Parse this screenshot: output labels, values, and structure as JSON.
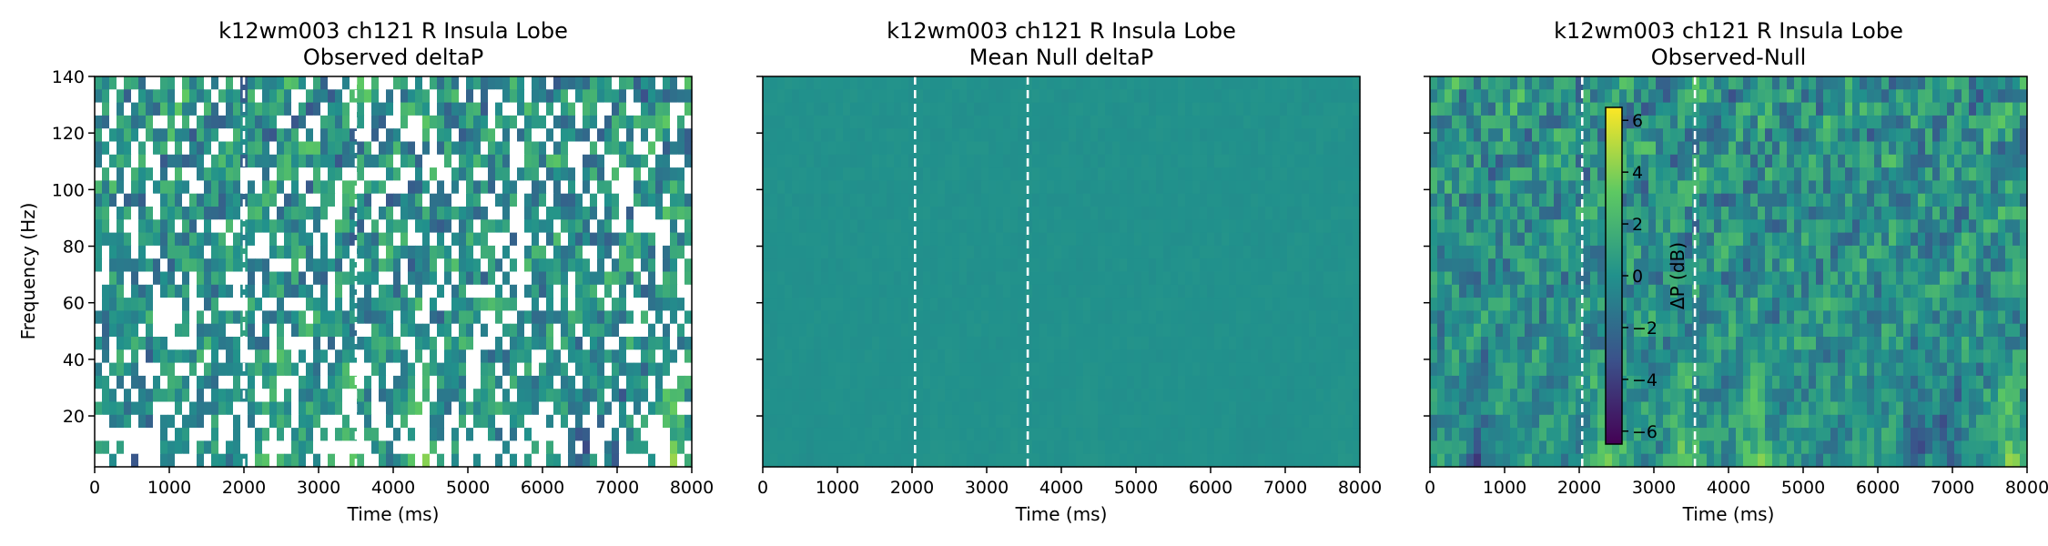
{
  "chart_data": [
    {
      "type": "heatmap",
      "title": "k12wm003 ch121 R Insula Lobe",
      "subtitle": "Observed deltaP",
      "xlabel": "Time (ms)",
      "ylabel": "Frequency (Hz)",
      "xlim": [
        0,
        8000
      ],
      "ylim": [
        2,
        140
      ],
      "xticks": [
        "0",
        "1000",
        "2000",
        "3000",
        "4000",
        "5000",
        "6000",
        "7000",
        "8000"
      ],
      "yticks": [
        "20",
        "40",
        "60",
        "80",
        "100",
        "120",
        "140"
      ],
      "event_lines_ms": [
        2000,
        3500
      ],
      "masked_cells": true,
      "grid": false
    },
    {
      "type": "heatmap",
      "title": "k12wm003 ch121 R Insula Lobe",
      "subtitle": "Mean Null deltaP",
      "xlabel": "Time (ms)",
      "ylabel": "",
      "xlim": [
        0,
        8000
      ],
      "ylim": [
        2,
        140
      ],
      "xticks": [
        "0",
        "1000",
        "2000",
        "3000",
        "4000",
        "5000",
        "6000",
        "7000",
        "8000"
      ],
      "event_lines_ms": [
        2040,
        3550
      ],
      "grid": false
    },
    {
      "type": "heatmap",
      "title": "k12wm003 ch121 R Insula Lobe",
      "subtitle": "Observed-Null",
      "xlabel": "Time (ms)",
      "ylabel": "",
      "xlim": [
        0,
        8000
      ],
      "ylim": [
        2,
        140
      ],
      "xticks": [
        "0",
        "1000",
        "2000",
        "3000",
        "4000",
        "5000",
        "6000",
        "7000",
        "8000"
      ],
      "event_lines_ms": [
        2040,
        3550
      ],
      "grid": false,
      "colorbar": {
        "label": "ΔP (dB)",
        "range": [
          -6.5,
          6.5
        ],
        "ticks": [
          "6",
          "4",
          "2",
          "0",
          "−2",
          "−4",
          "−6"
        ],
        "colormap": "viridis"
      }
    }
  ],
  "colors": {
    "viridis": [
      "#440154",
      "#3b528b",
      "#21918c",
      "#5ec962",
      "#fde725"
    ],
    "event_line": "#ffffff",
    "mask": "#ffffff"
  }
}
